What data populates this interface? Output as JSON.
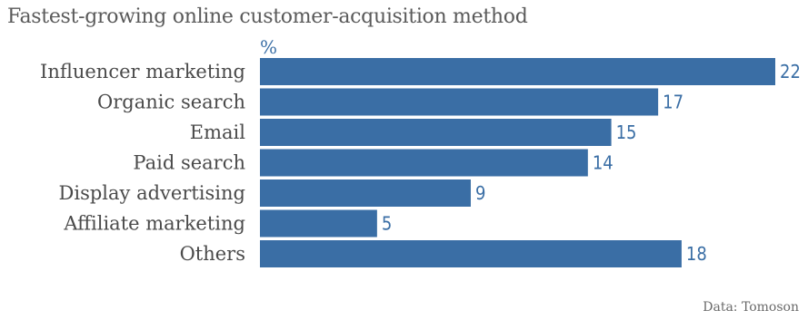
{
  "chart_data": {
    "type": "bar",
    "orientation": "horizontal",
    "title": "Fastest-growing online customer-acquisition method",
    "unit": "%",
    "categories": [
      "Influencer marketing",
      "Organic search",
      "Email",
      "Paid search",
      "Display advertising",
      "Affiliate marketing",
      "Others"
    ],
    "values": [
      22,
      17,
      15,
      14,
      9,
      5,
      18
    ],
    "xlim": [
      0,
      22
    ],
    "grid": false,
    "legend": "none",
    "source": "Data: Tomoson"
  },
  "colors": {
    "bar": "#3a6ea5",
    "value_label": "#3a6ea5",
    "category_label": "#4a4a4a",
    "title": "#5a5a5a"
  }
}
